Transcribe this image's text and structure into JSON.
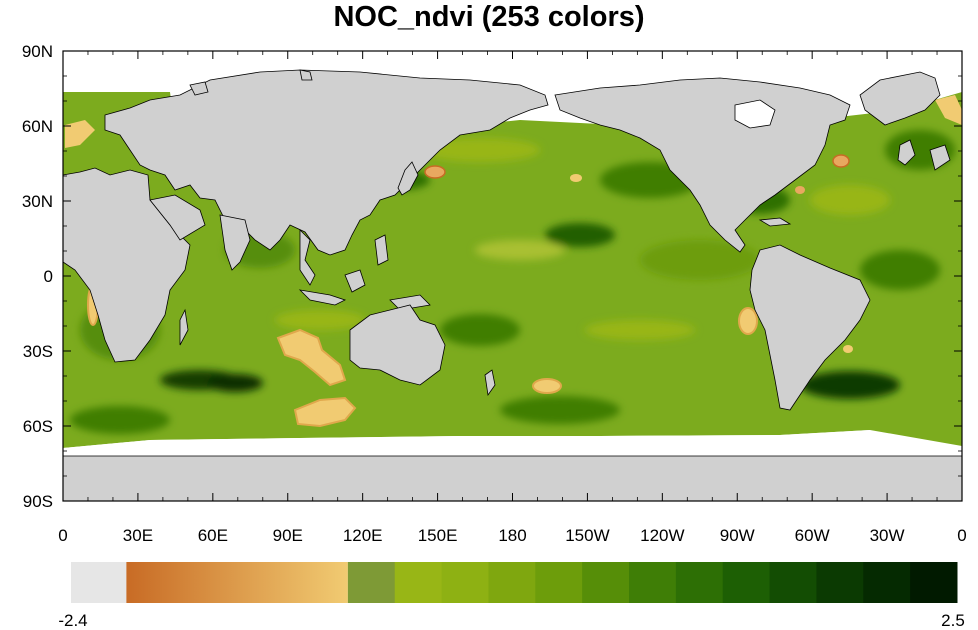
{
  "title": "NOC_ndvi (253 colors)",
  "x_ticks": [
    "0",
    "30E",
    "60E",
    "90E",
    "120E",
    "150E",
    "180",
    "150W",
    "120W",
    "90W",
    "60W",
    "30W",
    "0"
  ],
  "y_ticks": [
    "90N",
    "60N",
    "30N",
    "0",
    "30S",
    "60S",
    "90S"
  ],
  "colorbar": {
    "min_label": "-2.4",
    "max_label": "2.5",
    "colors": [
      "#e6e6e6",
      "#c86b25",
      "#f1cb72",
      "#7e9a36",
      "#98b616",
      "#8eb113",
      "#7fa70f",
      "#6d9d0b",
      "#568e08",
      "#3f7e06",
      "#2d6f05",
      "#1d5f04",
      "#134d03",
      "#0b3a02",
      "#052a01",
      "#011a00"
    ]
  },
  "colors": {
    "land": "#d0d0d0",
    "ocean_base": "#7cab1e",
    "no_data": "#ffffff"
  }
}
